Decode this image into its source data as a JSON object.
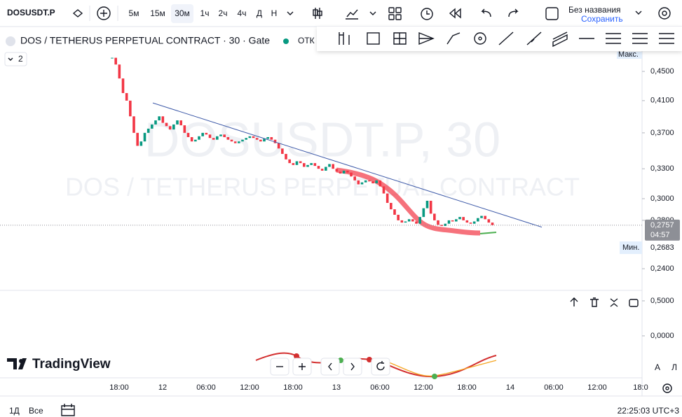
{
  "toolbar": {
    "symbol": "DOSUSDT.P",
    "intervals": [
      "5м",
      "15м",
      "30м",
      "1ч",
      "2ч",
      "4ч",
      "Д",
      "Н"
    ],
    "layout_name": "Без названия",
    "save": "Сохранить"
  },
  "legend": {
    "title": "DOS / TETHERUS PERPETUAL CONTRACT · 30 · Gate",
    "status": "ОТК",
    "indicators_count": "2"
  },
  "watermark": {
    "line1": "DOSUSDT.P, 30",
    "line2": "DOS / TETHERUS PERPETUAL CONTRACT"
  },
  "chart_data": {
    "type": "candlestick",
    "closes": [
      0.47,
      0.46,
      0.44,
      0.42,
      0.41,
      0.39,
      0.37,
      0.355,
      0.36,
      0.37,
      0.375,
      0.38,
      0.385,
      0.39,
      0.382,
      0.378,
      0.374,
      0.38,
      0.385,
      0.379,
      0.37,
      0.365,
      0.36,
      0.362,
      0.366,
      0.37,
      0.368,
      0.364,
      0.362,
      0.366,
      0.368,
      0.365,
      0.362,
      0.36,
      0.358,
      0.36,
      0.362,
      0.364,
      0.366,
      0.364,
      0.362,
      0.36,
      0.363,
      0.365,
      0.362,
      0.358,
      0.352,
      0.346,
      0.34,
      0.336,
      0.334,
      0.338,
      0.336,
      0.332,
      0.334,
      0.336,
      0.333,
      0.33,
      0.328,
      0.332,
      0.335,
      0.33,
      0.327,
      0.325,
      0.328,
      0.326,
      0.322,
      0.318,
      0.314,
      0.316,
      0.318,
      0.317,
      0.315,
      0.318,
      0.312,
      0.305,
      0.296,
      0.29,
      0.285,
      0.28,
      0.278,
      0.279,
      0.281,
      0.279,
      0.277,
      0.283,
      0.291,
      0.298,
      0.286,
      0.28,
      0.276,
      0.275,
      0.277,
      0.28,
      0.279,
      0.281,
      0.283,
      0.28,
      0.278,
      0.277,
      0.279,
      0.282,
      0.284,
      0.281,
      0.278,
      0.2757
    ],
    "ylim": [
      0.224,
      0.478
    ],
    "log_scale": true,
    "yticks": [
      {
        "value": 0.45,
        "label": "0,4500"
      },
      {
        "value": 0.41,
        "label": "0,4100"
      },
      {
        "value": 0.37,
        "label": "0,3700"
      },
      {
        "value": 0.33,
        "label": "0,3300"
      },
      {
        "value": 0.3,
        "label": "0,3000"
      },
      {
        "value": 0.28,
        "label": "0,2800"
      },
      {
        "value": 0.24,
        "label": "0,2400"
      }
    ],
    "up_color": "#089981",
    "down_color": "#f23645",
    "trendline": [
      0.407,
      0.274
    ],
    "current": {
      "value": 0.2757,
      "label": "0,2757",
      "countdown": "04:57"
    },
    "max_label": "Макс.",
    "min": {
      "value": 0.2683,
      "label": "0,2683",
      "name": "Мин."
    },
    "x_labels": [
      "18:00",
      "12",
      "06:00",
      "12:00",
      "18:00",
      "13",
      "06:00",
      "12:00",
      "18:00",
      "14",
      "06:00",
      "12:00",
      "18:0"
    ]
  },
  "indicator": {
    "ylim": [
      -0.6,
      0.65
    ],
    "yticks": [
      {
        "value": 0.5,
        "label": "0,5000"
      },
      {
        "value": 0,
        "label": "0,0000"
      }
    ]
  },
  "brand": "TradingView",
  "footer": {
    "ranges": [
      "1Д",
      "Все"
    ],
    "clock": "22:25:03 UTC+3"
  },
  "scale_buttons": [
    "A",
    "Л"
  ]
}
